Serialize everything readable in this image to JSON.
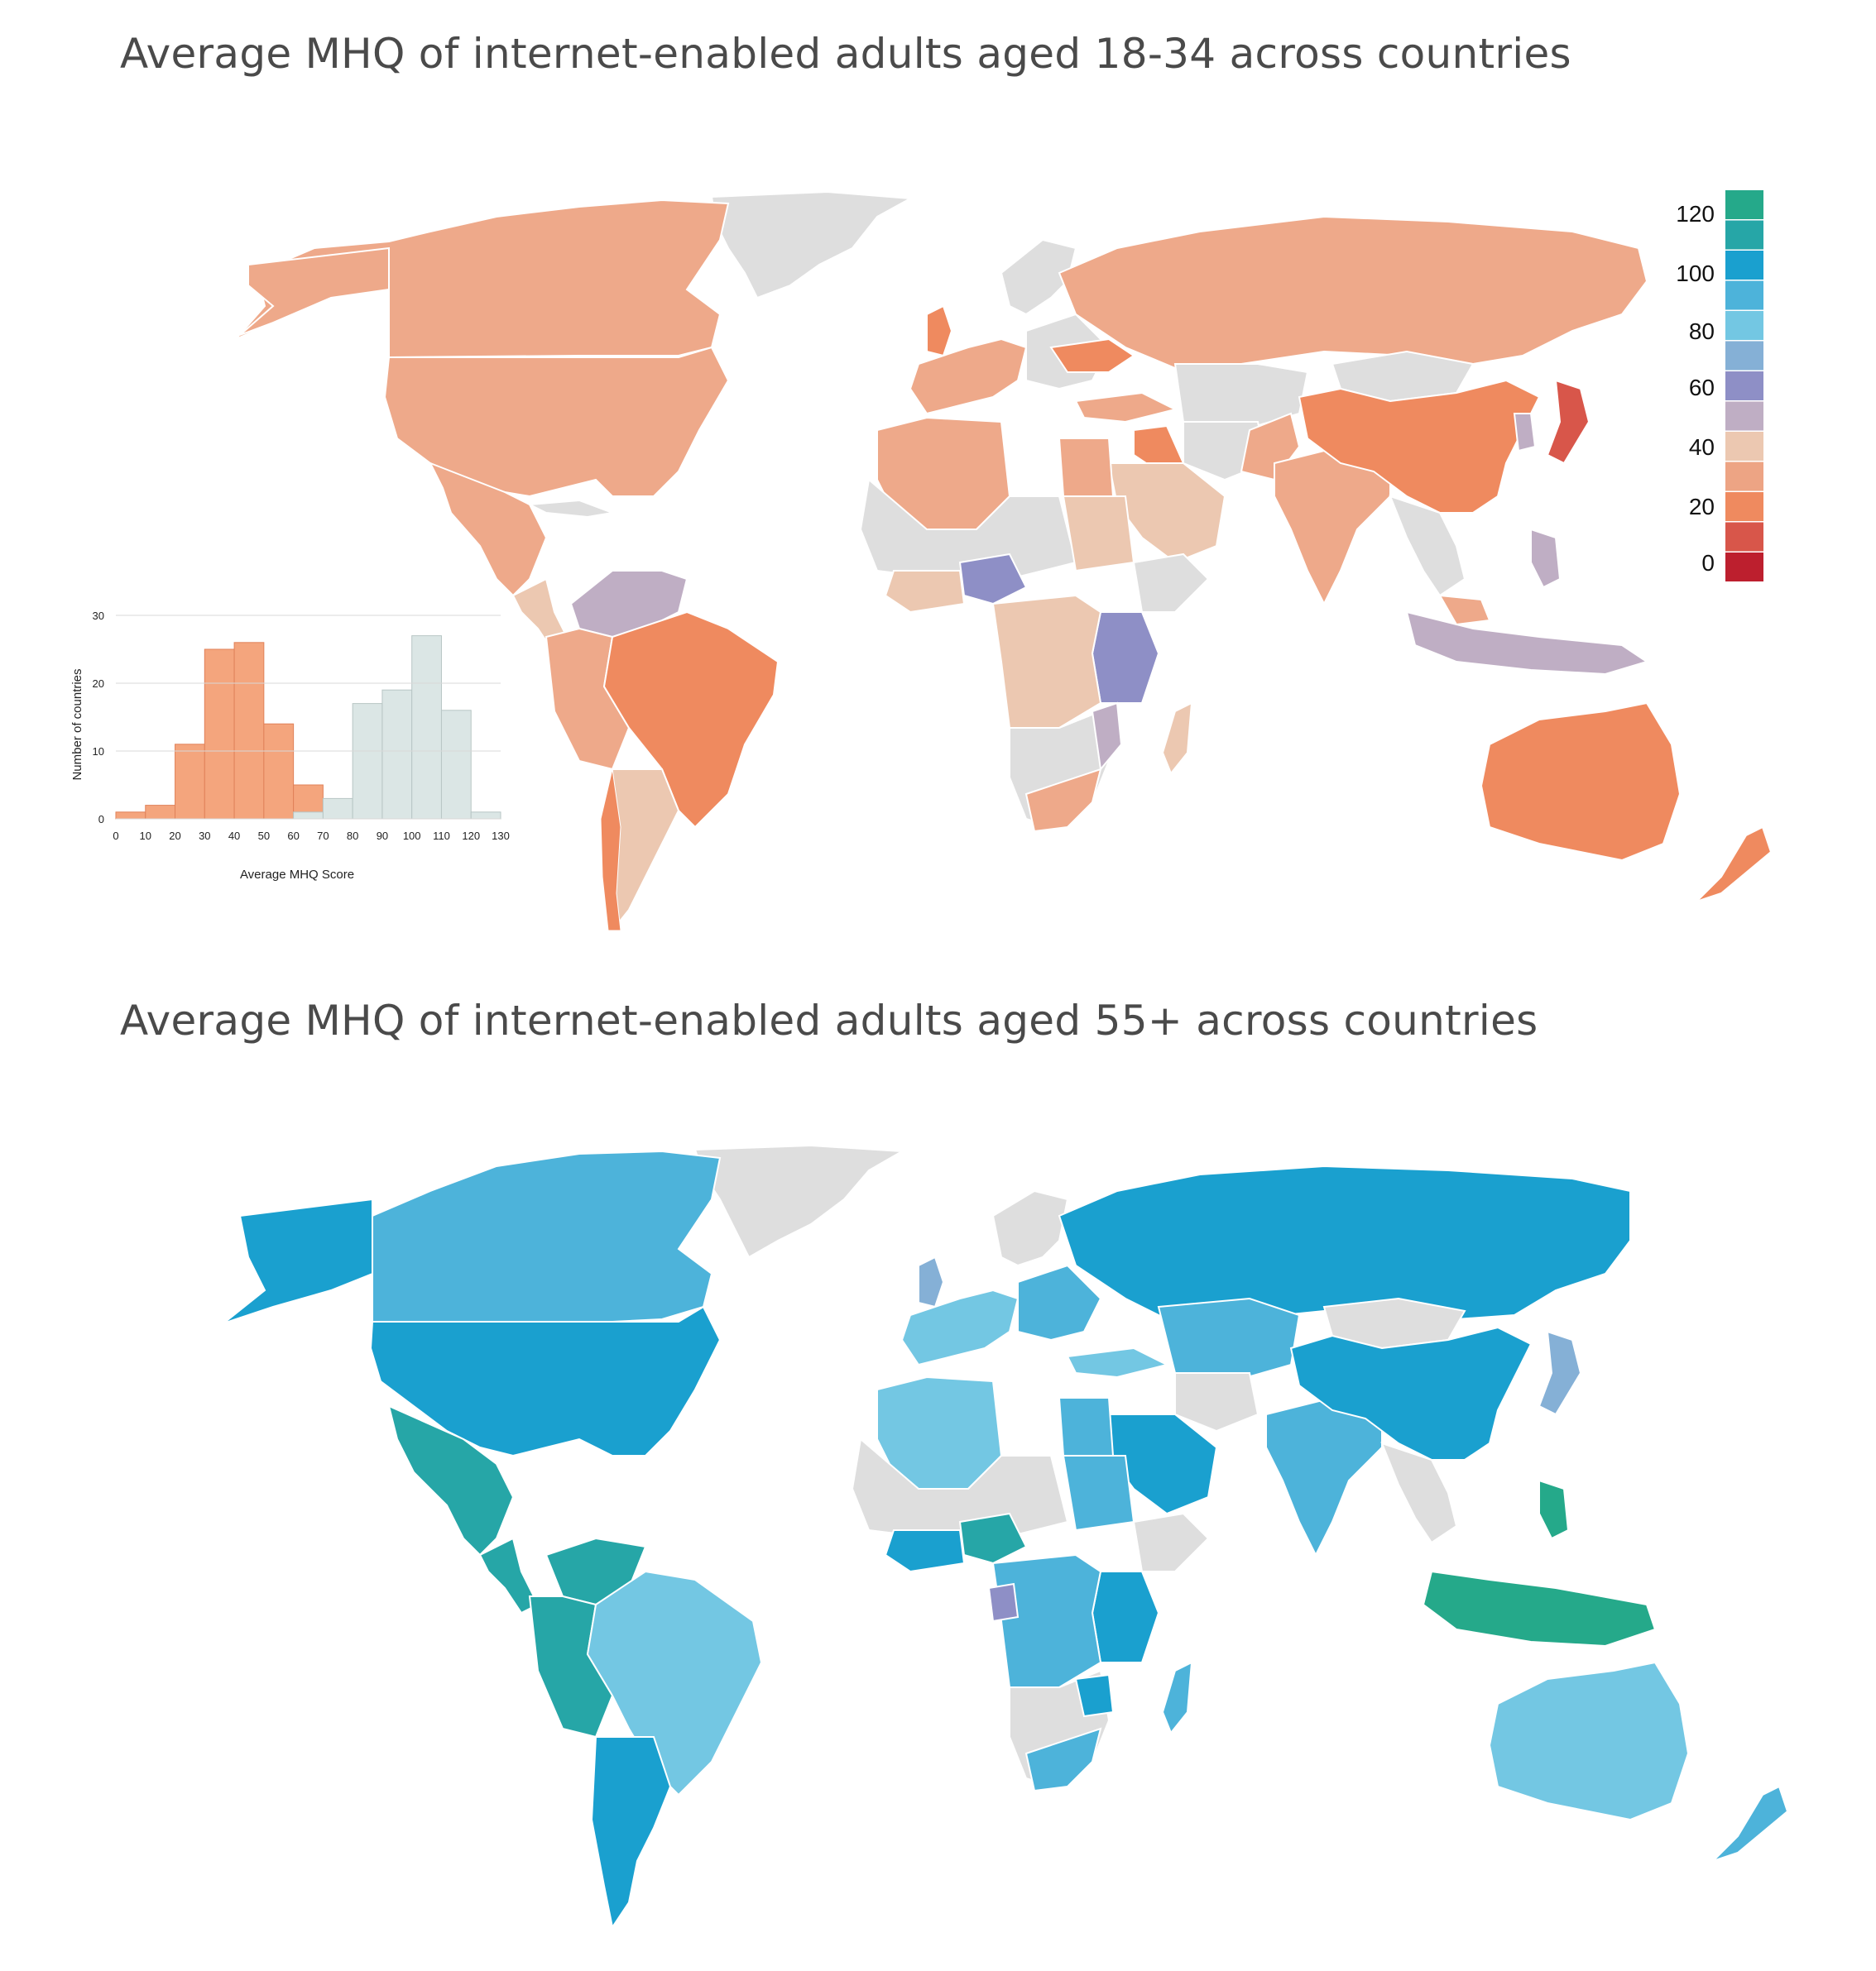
{
  "maps": [
    {
      "title": "Average MHQ of internet-enabled adults aged 18-34 across countries",
      "legend": {
        "labels": [
          "120",
          "100",
          "80",
          "60",
          "40",
          "20",
          "0"
        ],
        "colors": [
          "#25a98a",
          "#26a6a7",
          "#1aa0cf",
          "#4db3da",
          "#73c7e3",
          "#85b0d6",
          "#8e8fc6",
          "#bfaec4",
          "#ecc8b1",
          "#eda484",
          "#ef8a5f",
          "#d8564a",
          "#bd1f2e"
        ]
      }
    },
    {
      "title": "Average MHQ of internet-enabled adults aged 55+ across countries"
    }
  ],
  "histogram": {
    "xlabel": "Average MHQ Score",
    "ylabel": "Number of countries",
    "yticks": [
      "0",
      "10",
      "20",
      "30"
    ],
    "xticks": [
      "0",
      "10",
      "20",
      "30",
      "40",
      "50",
      "60",
      "70",
      "80",
      "90",
      "100",
      "110",
      "120",
      "130"
    ]
  },
  "chart_data": {
    "type": "bar",
    "title": "",
    "xlabel": "Average MHQ Score",
    "ylabel": "Number of countries",
    "bins": [
      [
        0,
        10
      ],
      [
        10,
        20
      ],
      [
        20,
        30
      ],
      [
        30,
        40
      ],
      [
        40,
        50
      ],
      [
        50,
        60
      ],
      [
        60,
        70
      ],
      [
        70,
        80
      ],
      [
        80,
        90
      ],
      [
        90,
        100
      ],
      [
        100,
        110
      ],
      [
        110,
        120
      ],
      [
        120,
        130
      ]
    ],
    "series": [
      {
        "values": [
          1,
          2,
          11,
          25,
          26,
          14,
          5,
          0,
          0,
          0,
          0,
          0,
          0
        ]
      },
      {
        "values": [
          0,
          0,
          0,
          0,
          0,
          0,
          1,
          3,
          17,
          19,
          27,
          16,
          1
        ]
      }
    ],
    "ylim": [
      0,
      30
    ],
    "xlim": [
      0,
      130
    ],
    "colors": {
      "younger": "#f4a57d",
      "older": "#dbe6e5"
    }
  }
}
